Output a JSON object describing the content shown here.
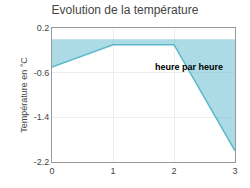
{
  "chart_data": {
    "type": "area",
    "title": "Evolution de la température",
    "ylabel": "Température en °C",
    "x": [
      0,
      1,
      2,
      3
    ],
    "values": [
      -0.5,
      -0.1,
      -0.1,
      -2.0
    ],
    "color": "#5bb8cc",
    "xlim": [
      0,
      3
    ],
    "ylim": [
      -2.2,
      0.2
    ],
    "xticks": [
      0,
      1,
      2,
      3
    ],
    "yticks": [
      0.2,
      -0.6,
      -1.4,
      -2.2
    ],
    "grid": true,
    "annotations": [
      {
        "text": "heure par heure",
        "x": 1.65,
        "y": -0.38
      }
    ]
  }
}
